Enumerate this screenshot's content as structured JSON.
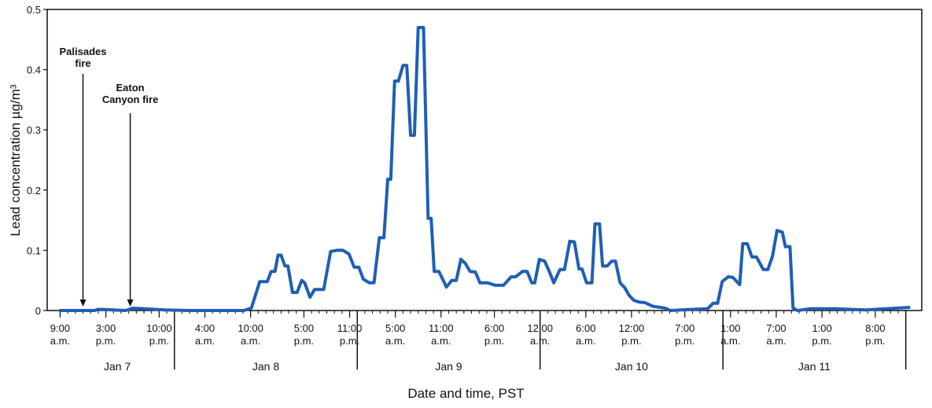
{
  "chart_data": {
    "type": "line",
    "x_label": "Date and time, PST",
    "y_label": "Lead concentration µg/m³",
    "color": "#1f5fb4",
    "xlim": [
      7.3,
      122.1
    ],
    "ylim": [
      0,
      0.5
    ],
    "yticks": [
      0,
      0.1,
      0.2,
      0.3,
      0.4,
      0.5
    ],
    "xticks": [
      {
        "value": 9,
        "label": "9:00 a.m."
      },
      {
        "value": 15,
        "label": "3:00 p.m."
      },
      {
        "value": 22,
        "label": "10:00 p.m."
      },
      {
        "value": 28,
        "label": "4:00 a.m."
      },
      {
        "value": 34,
        "label": "10:00 a.m."
      },
      {
        "value": 41,
        "label": "5:00 p.m."
      },
      {
        "value": 47,
        "label": "11:00 p.m."
      },
      {
        "value": 53,
        "label": "5:00 a.m."
      },
      {
        "value": 59,
        "label": "11:00 a.m."
      },
      {
        "value": 66,
        "label": "6:00 p.m."
      },
      {
        "value": 72,
        "label": "12:00 a.m."
      },
      {
        "value": 78,
        "label": "6:00 a.m."
      },
      {
        "value": 84,
        "label": "12:00 p.m."
      },
      {
        "value": 91,
        "label": "7:00 p.m."
      },
      {
        "value": 97,
        "label": "1:00 a.m."
      },
      {
        "value": 103,
        "label": "7:00 a.m."
      },
      {
        "value": 109,
        "label": "1:00 p.m."
      },
      {
        "value": 116,
        "label": "8:00 p.m."
      }
    ],
    "date_groups": [
      "Jan 7",
      "Jan 8",
      "Jan 9",
      "Jan 10",
      "Jan 11"
    ],
    "date_boundaries": [
      24,
      48,
      72,
      96,
      120
    ],
    "annotations": [
      {
        "text": "Palisades fire",
        "x": 12
      },
      {
        "text": "Eaton Canyon fire",
        "x": 18.2
      }
    ],
    "x": [
      9,
      13.5,
      14.0,
      17.6,
      18.6,
      22.8,
      25.9,
      33.1,
      34.1,
      35.2,
      36.2,
      36.7,
      37.2,
      37.6,
      38.0,
      38.5,
      38.9,
      39.5,
      40.1,
      40.7,
      41.1,
      41.8,
      42.4,
      43.6,
      44.5,
      45.3,
      46.1,
      46.9,
      47.6,
      48.2,
      48.8,
      49.6,
      50.2,
      50.9,
      51.5,
      52.0,
      52.4,
      52.9,
      53.4,
      54.0,
      54.5,
      55.0,
      55.5,
      56.0,
      56.7,
      57.3,
      57.7,
      58.1,
      58.7,
      59.1,
      59.7,
      60.4,
      61.0,
      61.6,
      62.2,
      62.8,
      63.5,
      64.1,
      65.1,
      66.1,
      67.2,
      68.2,
      68.8,
      69.7,
      70.3,
      70.9,
      71.3,
      71.9,
      72.6,
      73.2,
      73.8,
      74.6,
      75.2,
      75.9,
      76.5,
      77.1,
      77.5,
      78.1,
      78.8,
      79.2,
      79.8,
      80.2,
      80.8,
      81.4,
      81.9,
      82.5,
      83.1,
      83.7,
      84.3,
      85.0,
      85.8,
      86.8,
      88.4,
      89.1,
      92.0,
      94.0,
      94.7,
      95.3,
      95.9,
      96.7,
      97.3,
      98.2,
      98.6,
      99.2,
      99.8,
      100.4,
      101.3,
      101.9,
      102.5,
      103.1,
      103.8,
      104.2,
      104.8,
      105.2,
      105.8,
      107.5,
      110.6,
      114.7,
      118.8,
      120.4
    ],
    "values": [
      0,
      0,
      0.002,
      0,
      0.004,
      0.001,
      0,
      0,
      0.004,
      0.048,
      0.048,
      0.065,
      0.065,
      0.092,
      0.092,
      0.074,
      0.074,
      0.03,
      0.03,
      0.05,
      0.046,
      0.022,
      0.035,
      0.035,
      0.098,
      0.1,
      0.1,
      0.094,
      0.072,
      0.072,
      0.052,
      0.046,
      0.046,
      0.121,
      0.121,
      0.218,
      0.218,
      0.381,
      0.381,
      0.407,
      0.407,
      0.291,
      0.291,
      0.47,
      0.47,
      0.153,
      0.153,
      0.065,
      0.065,
      0.055,
      0.039,
      0.05,
      0.05,
      0.085,
      0.078,
      0.065,
      0.064,
      0.046,
      0.046,
      0.042,
      0.042,
      0.056,
      0.056,
      0.065,
      0.065,
      0.046,
      0.046,
      0.085,
      0.082,
      0.065,
      0.046,
      0.068,
      0.068,
      0.115,
      0.114,
      0.069,
      0.069,
      0.046,
      0.046,
      0.144,
      0.144,
      0.074,
      0.074,
      0.082,
      0.082,
      0.046,
      0.038,
      0.025,
      0.017,
      0.014,
      0.013,
      0.007,
      0.004,
      0,
      0.002,
      0.003,
      0.012,
      0.012,
      0.048,
      0.056,
      0.055,
      0.043,
      0.111,
      0.111,
      0.089,
      0.089,
      0.068,
      0.068,
      0.09,
      0.133,
      0.13,
      0.106,
      0.106,
      0.004,
      0,
      0.003,
      0.003,
      0.001,
      0.004,
      0.005
    ]
  }
}
